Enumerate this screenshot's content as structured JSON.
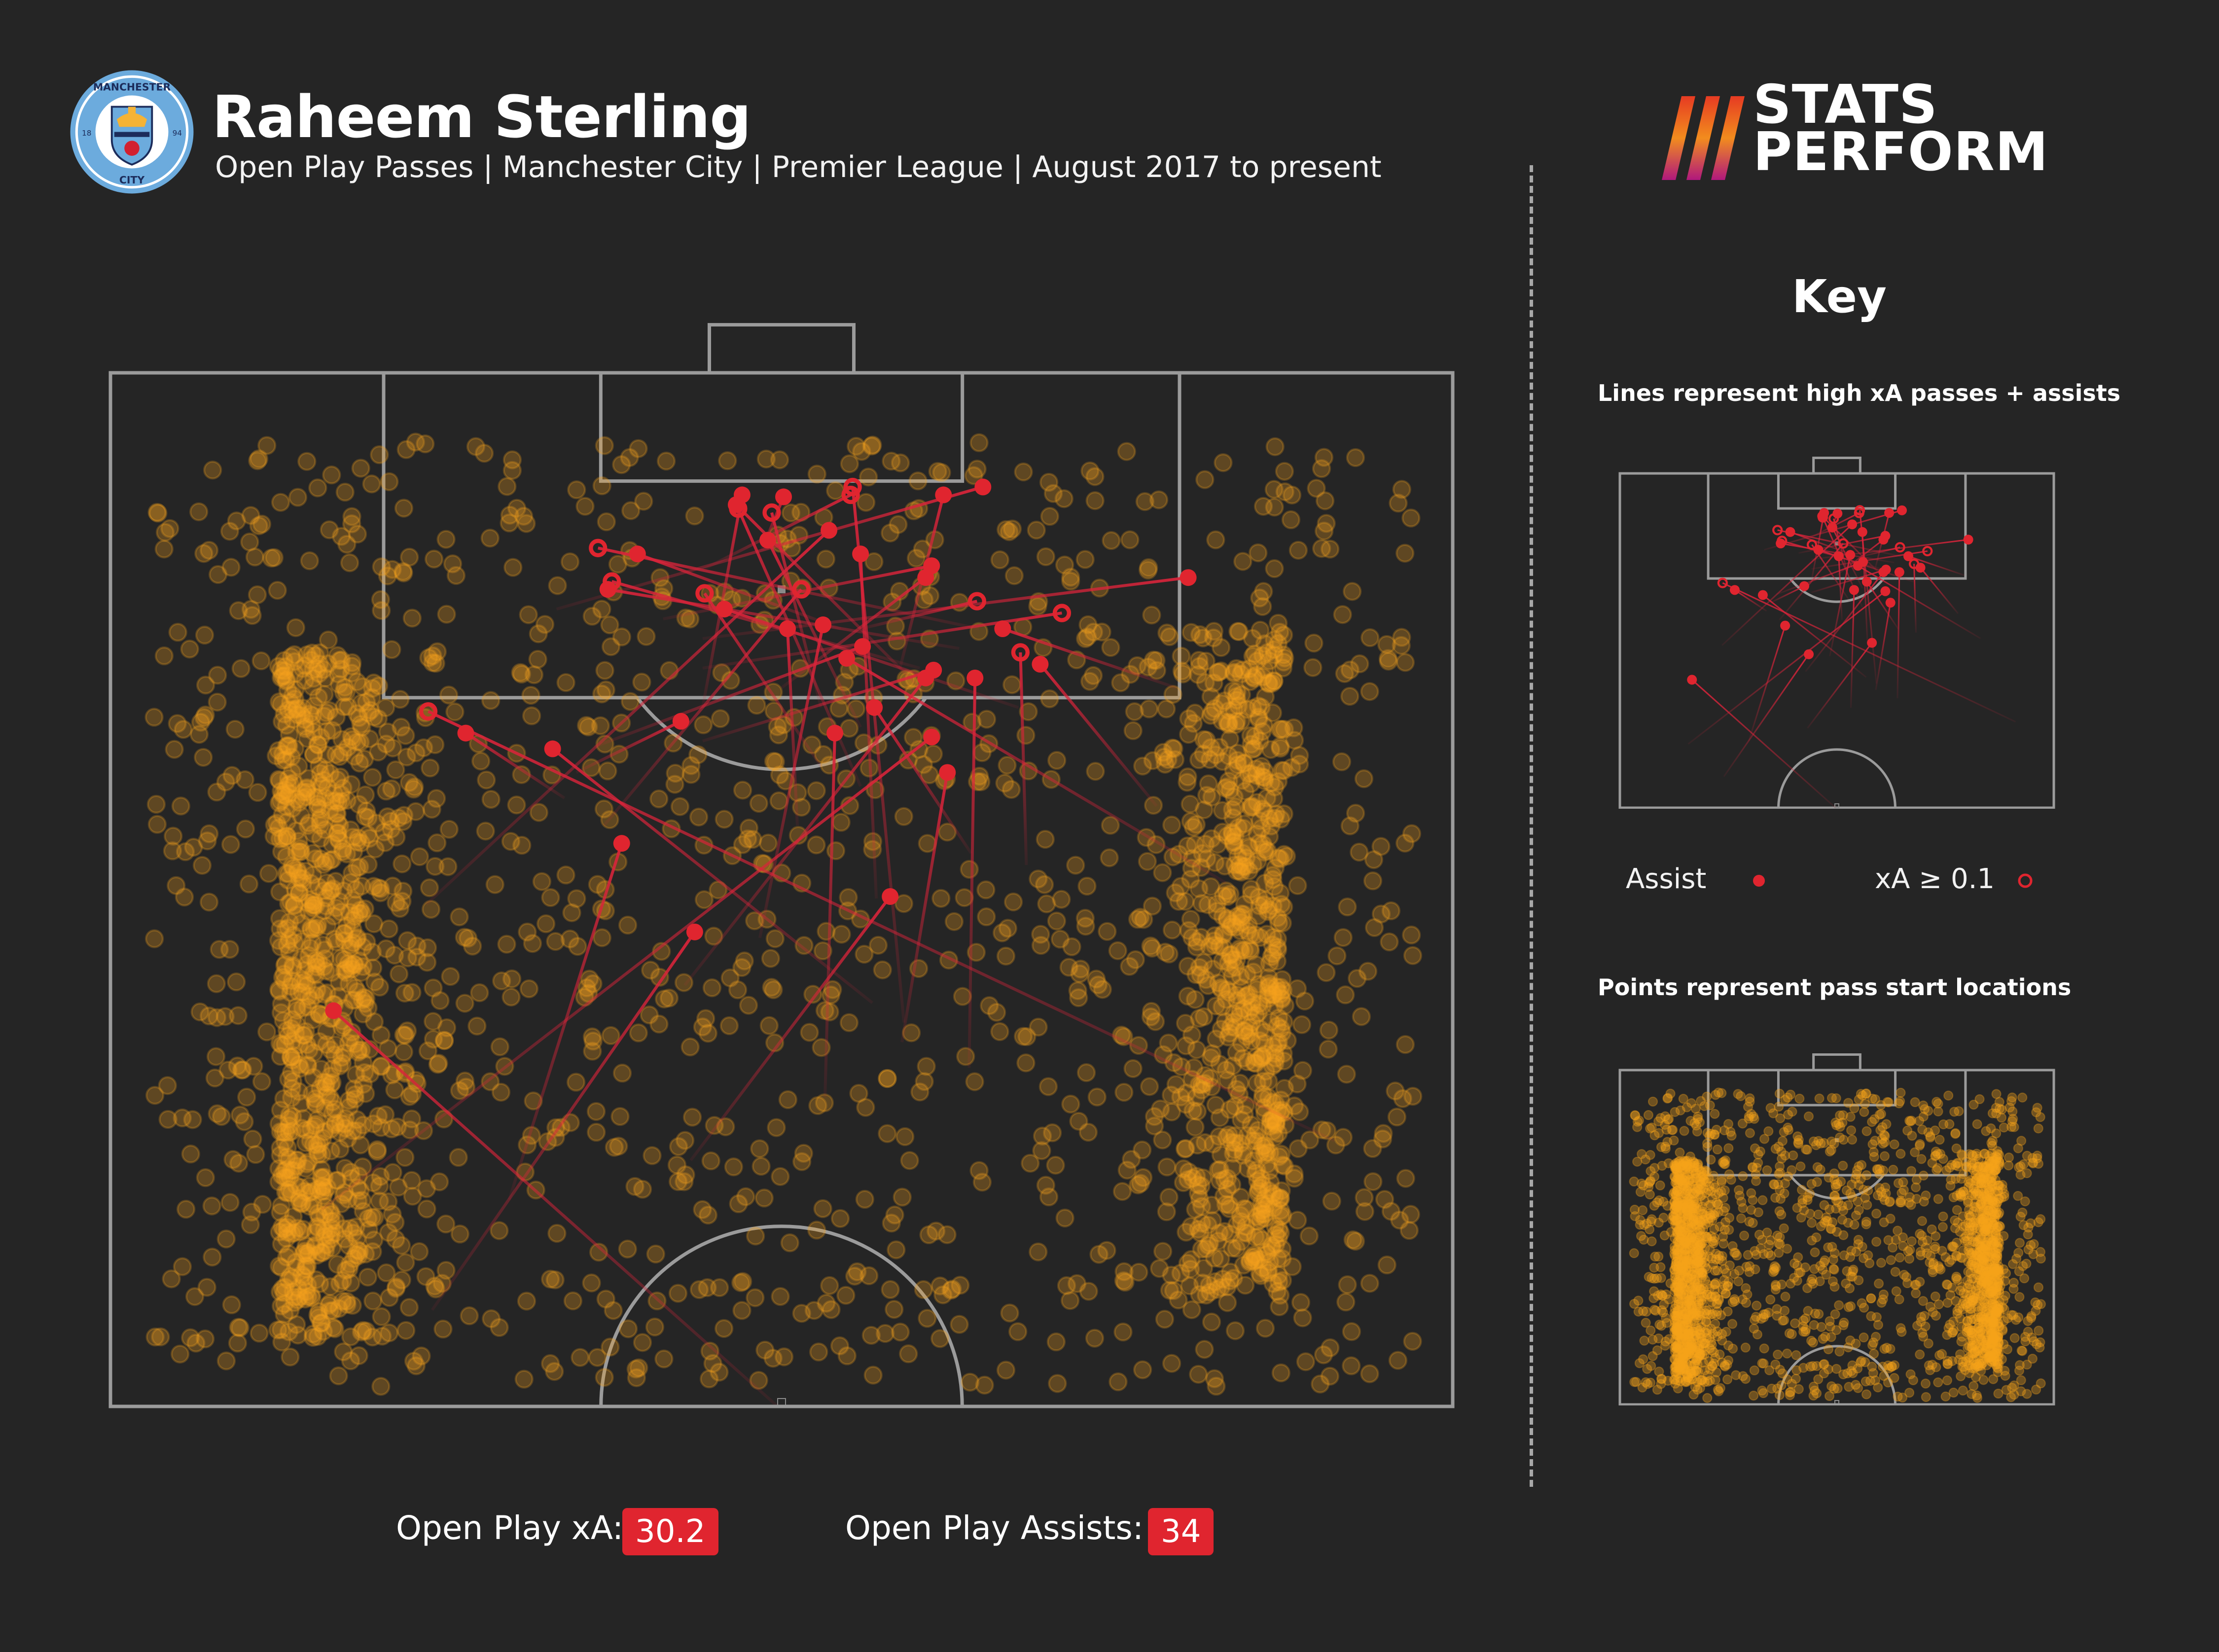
{
  "header": {
    "title": "Raheem Sterling",
    "subtitle": "Open Play Passes | Manchester City | Premier League | August 2017 to present",
    "crest": {
      "text_top": "MANCHESTER",
      "text_bottom": "CITY",
      "year_left": "18",
      "year_right": "94",
      "colors": {
        "outer": "#6cabdd",
        "inner": "#ffffff",
        "shield": "#1c2c5b",
        "gold": "#f5b335",
        "red": "#d2202f"
      }
    },
    "brand": {
      "line1": "STATS",
      "line2": "PERFORM",
      "stripe_colors": [
        "#e63b22",
        "#f28c1e",
        "#b0187d"
      ]
    }
  },
  "key": {
    "title": "Key",
    "lines_caption": "Lines represent high xA passes + assists",
    "points_caption": "Points represent pass start locations",
    "legend": {
      "assist_label": "Assist",
      "xa_label": "xA ≥ 0.1"
    }
  },
  "stats": {
    "xa_label": "Open Play xA:",
    "xa_value": "30.2",
    "assists_label": "Open Play Assists:",
    "assists_value": "34"
  },
  "colors": {
    "background": "#252525",
    "pitch_lines": "#9b9b9b",
    "pass_points": "#f7a21b",
    "pass_lines": "#d9243a",
    "accent": "#e0252f"
  },
  "chart_data": {
    "type": "scatter",
    "pitch": {
      "length_m": 105,
      "width_m": 68,
      "view": "attacking half"
    },
    "series": [
      {
        "kind": "pass start points",
        "marker": "translucent orange circle"
      },
      {
        "kind": "high xA passes + assists",
        "assists": [
          {
            "start": [
              52.5,
              33.8
            ],
            "end": [
              72.6,
              11.3
            ]
          },
          {
            "start": [
              57.4,
              16.3
            ],
            "end": [
              76.6,
              29.6
            ]
          },
          {
            "start": [
              62.5,
              10.7
            ],
            "end": [
              86.5,
              41.6
            ]
          },
          {
            "start": [
              63.0,
              20.2
            ],
            "end": [
              81.1,
              25.9
            ]
          },
          {
            "start": [
              69.7,
              43.5
            ],
            "end": [
              89.5,
              43.8
            ]
          },
          {
            "start": [
              68.2,
              36.2
            ],
            "end": [
              86.7,
              36.7
            ]
          },
          {
            "start": [
              71.0,
              40.1
            ],
            "end": [
              84.7,
              42.4
            ]
          },
          {
            "start": [
              73.0,
              38.6
            ],
            "end": [
              85.9,
              22.4
            ]
          },
          {
            "start": [
              65.0,
              29.4
            ],
            "end": [
              78.4,
              39.5
            ]
          },
          {
            "start": [
              73.9,
              29.1
            ],
            "end": [
              89.5,
              41.3
            ]
          },
          {
            "start": [
              76.3,
              32.9
            ],
            "end": [
              92.2,
              36.1
            ]
          },
          {
            "start": [
              79.1,
              56.5
            ],
            "end": [
              90.5,
              37.3
            ]
          },
          {
            "start": [
              78.3,
              38.8
            ],
            "end": [
              95.8,
              38.0
            ]
          },
          {
            "start": [
              80.6,
              43.6
            ],
            "end": [
              88.0,
              38.7
            ]
          },
          {
            "start": [
              86.3,
              30.0
            ],
            "end": [
              89.9,
              41.7
            ]
          },
          {
            "start": [
              82.0,
              34.8
            ],
            "end": [
              92.0,
              34.3
            ]
          },
          {
            "start": [
              84.7,
              23.6
            ],
            "end": [
              87.3,
              28.9
            ]
          },
          {
            "start": [
              86.0,
              24.5
            ],
            "end": [
              91.1,
              38.1
            ]
          },
          {
            "start": [
              83.0,
              53.0
            ],
            "end": [
              90.2,
              47.1
            ]
          },
          {
            "start": [
              88.8,
              41.2
            ],
            "end": [
              98.3,
              31.7
            ]
          },
          {
            "start": [
              78.0,
              16.0
            ],
            "end": [
              97.0,
              36.4
            ]
          },
          {
            "start": [
              83.4,
              23.0
            ],
            "end": [
              86.7,
              18.0
            ]
          },
          {
            "start": [
              90.0,
              40.0
            ],
            "end": [
              98.8,
              42.2
            ]
          },
          {
            "start": [
              87.0,
              38.0
            ],
            "end": [
              96.5,
              33.3
            ]
          },
          {
            "start": [
              93.0,
              22.6
            ],
            "end": [
              99.2,
              44.2
            ]
          },
          {
            "start": [
              88.0,
              30.0
            ],
            "end": [
              98.8,
              32.0
            ]
          },
          {
            "start": [
              88.0,
              46.0
            ],
            "end": [
              93.0,
              31.1
            ]
          },
          {
            "start": [
              89.0,
              34.0
            ],
            "end": [
              94.6,
              41.3
            ]
          },
          {
            "start": [
              91.0,
              43.0
            ],
            "end": [
              94.0,
              25.2
            ]
          },
          {
            "start": [
              92.0,
              37.0
            ],
            "end": [
              95.8,
              26.7
            ]
          },
          {
            "start": [
              91.5,
              30.0
            ],
            "end": [
              94.6,
              54.6
            ]
          },
          {
            "start": [
              92.5,
              28.0
            ],
            "end": [
              95.2,
              41.6
            ]
          },
          {
            "start": [
              89.0,
              54.0
            ],
            "end": [
              92.0,
              45.2
            ]
          },
          {
            "start": [
              96.0,
              33.0
            ],
            "end": [
              98.7,
              34.1
            ]
          }
        ],
        "high_xa": [
          {
            "start": [
              66.0,
              62.0
            ],
            "end": [
              87.8,
              16.1
            ]
          },
          {
            "start": [
              72.0,
              40.2
            ],
            "end": [
              99.2,
              37.6
            ]
          },
          {
            "start": [
              84.0,
              38.0
            ],
            "end": [
              98.1,
              31.8
            ]
          },
          {
            "start": [
              88.0,
              36.0
            ],
            "end": [
              97.9,
              33.5
            ]
          },
          {
            "start": [
              80.0,
              46.4
            ],
            "end": [
              90.8,
              46.1
            ]
          },
          {
            "start": [
              90.0,
              41.0
            ],
            "end": [
              94.4,
              25.4
            ]
          },
          {
            "start": [
              90.0,
              30.0
            ],
            "end": [
              92.8,
              48.2
            ]
          },
          {
            "start": [
              82.0,
              25.0
            ],
            "end": [
              94.0,
              35.0
            ]
          },
          {
            "start": [
              85.0,
              36.0
            ],
            "end": [
              93.8,
              30.1
            ]
          },
          {
            "start": [
              92.0,
              44.0
            ],
            "end": [
              96.1,
              24.7
            ]
          },
          {
            "start": [
              95.0,
              30.0
            ],
            "end": [
              98.8,
              37.5
            ]
          },
          {
            "start": [
              92.0,
              38.0
            ],
            "end": [
              93.4,
              43.9
            ]
          }
        ]
      }
    ]
  }
}
